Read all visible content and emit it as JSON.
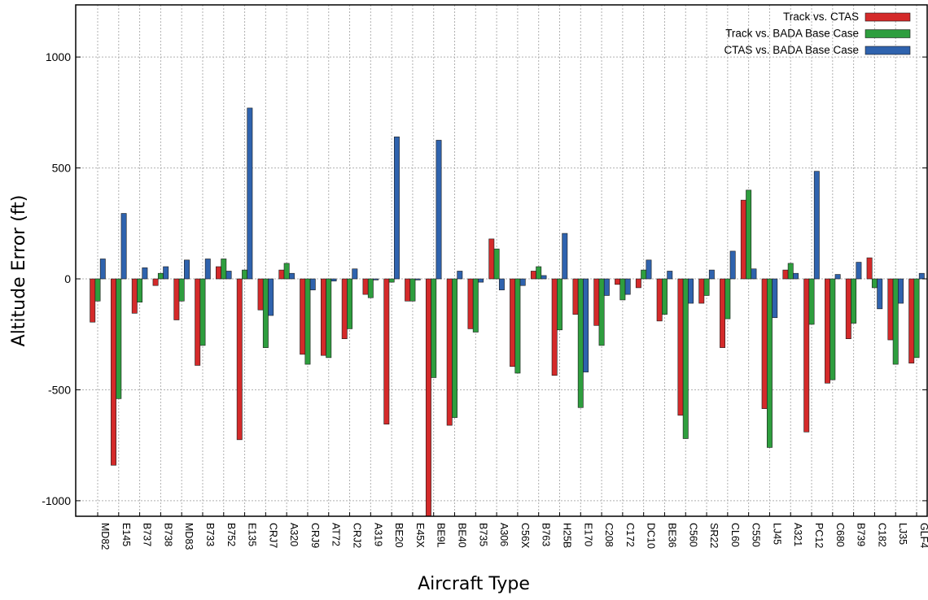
{
  "chart_data": {
    "type": "bar",
    "title": "",
    "xlabel": "Aircraft Type",
    "ylabel": "Altitude Error (ft)",
    "ylim": [
      -1070,
      1235
    ],
    "yticks": [
      1000,
      500,
      0,
      -500,
      -1000
    ],
    "ytick_labels": [
      "1000",
      "500",
      "0",
      "-500",
      "-1000"
    ],
    "grid": true,
    "legend_position": "top-right",
    "categories": [
      "MD82",
      "E145",
      "B737",
      "B738",
      "MD83",
      "B733",
      "B752",
      "E135",
      "CRJ7",
      "A320",
      "CRJ9",
      "AT72",
      "CRJ2",
      "A319",
      "BE20",
      "E45X",
      "BE9L",
      "BE40",
      "B735",
      "A306",
      "C56X",
      "B763",
      "H25B",
      "E170",
      "C208",
      "C172",
      "DC10",
      "BE36",
      "C560",
      "SR22",
      "CL60",
      "C550",
      "LJ45",
      "A321",
      "PC12",
      "C680",
      "B739",
      "C182",
      "LJ35",
      "GLF4"
    ],
    "series": [
      {
        "name": "Track vs. CTAS",
        "color": "#d42a2a",
        "values": [
          -195,
          -840,
          -155,
          -30,
          -185,
          -390,
          55,
          -725,
          -140,
          40,
          -340,
          -345,
          -270,
          -70,
          -655,
          -100,
          -1070,
          -660,
          -225,
          180,
          -395,
          35,
          -435,
          -160,
          -210,
          -25,
          -40,
          -190,
          -615,
          -110,
          -310,
          355,
          -585,
          40,
          -690,
          -470,
          -270,
          95,
          -275,
          -380
        ]
      },
      {
        "name": "Track vs. BADA Base Case",
        "color": "#2e9e3e",
        "values": [
          -100,
          -540,
          -105,
          25,
          -100,
          -300,
          90,
          40,
          -310,
          70,
          -385,
          -355,
          -225,
          -85,
          -15,
          -100,
          -445,
          -625,
          -240,
          135,
          -425,
          55,
          -230,
          -580,
          -300,
          -95,
          40,
          -160,
          -720,
          -75,
          -180,
          400,
          -760,
          70,
          -205,
          -455,
          -200,
          -40,
          -385,
          -355
        ]
      },
      {
        "name": "CTAS vs. BADA Base Case",
        "color": "#2f63ae",
        "values": [
          90,
          295,
          50,
          55,
          85,
          90,
          35,
          770,
          -165,
          25,
          -50,
          -10,
          45,
          -5,
          640,
          -5,
          625,
          35,
          -15,
          -50,
          -30,
          15,
          205,
          -420,
          -75,
          -70,
          85,
          35,
          -110,
          40,
          125,
          45,
          -175,
          25,
          485,
          20,
          75,
          -135,
          -110,
          25
        ]
      }
    ]
  }
}
